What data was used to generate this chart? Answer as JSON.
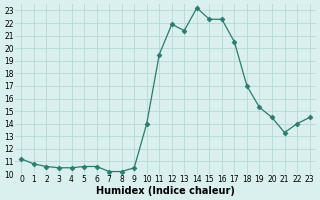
{
  "x": [
    0,
    1,
    2,
    3,
    4,
    5,
    6,
    7,
    8,
    9,
    10,
    11,
    12,
    13,
    14,
    15,
    16,
    17,
    18,
    19,
    20,
    21,
    22,
    23
  ],
  "y": [
    11.2,
    10.8,
    10.6,
    10.5,
    10.5,
    10.6,
    10.6,
    10.2,
    10.2,
    10.5,
    14.0,
    19.5,
    21.9,
    21.4,
    23.2,
    22.3,
    22.3,
    20.5,
    17.0,
    15.3,
    14.5,
    13.3,
    14.0,
    14.5
  ],
  "line_color": "#2d7a6e",
  "marker": "D",
  "marker_size": 2.5,
  "bg_color": "#d9f0ee",
  "grid_color": "#b8d8d5",
  "xlabel": "Humidex (Indice chaleur)",
  "xlim": [
    -0.5,
    23.5
  ],
  "ylim": [
    10,
    23.5
  ],
  "yticks": [
    10,
    11,
    12,
    13,
    14,
    15,
    16,
    17,
    18,
    19,
    20,
    21,
    22,
    23
  ],
  "xticks": [
    0,
    1,
    2,
    3,
    4,
    5,
    6,
    7,
    8,
    9,
    10,
    11,
    12,
    13,
    14,
    15,
    16,
    17,
    18,
    19,
    20,
    21,
    22,
    23
  ],
  "tick_fontsize": 5.5,
  "xlabel_fontsize": 7
}
